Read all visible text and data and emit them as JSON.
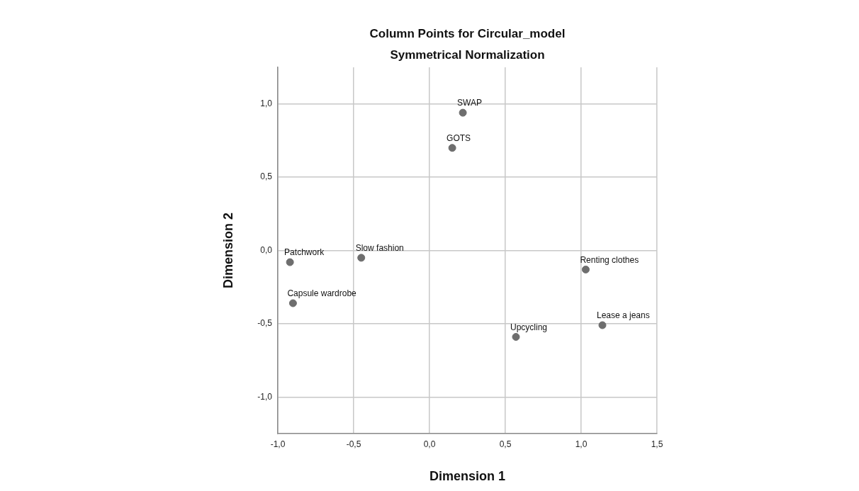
{
  "chart_data": {
    "type": "scatter",
    "title": "Column Points for Circular_model",
    "subtitle": "Symmetrical Normalization",
    "xlabel": "Dimension 1",
    "ylabel": "Dimension 2",
    "x": [
      0.22,
      0.15,
      -0.92,
      -0.45,
      -0.9,
      1.03,
      1.14,
      0.57
    ],
    "values": [
      0.94,
      0.7,
      -0.08,
      -0.05,
      -0.36,
      -0.13,
      -0.51,
      -0.59
    ],
    "value_labels": [
      "SWAP",
      "GOTS",
      "Patchwork",
      "Slow fashion",
      "Capsule wardrobe",
      "Renting clothes",
      "Lease a jeans",
      "Upcycling"
    ],
    "color": "#6e6e6e",
    "marker": "circle",
    "grid": true,
    "legend": false,
    "xlim": [
      -1.0,
      1.5
    ],
    "xticks": [
      {
        "value": -1.0,
        "label": "-1,0"
      },
      {
        "value": -0.5,
        "label": "-0,5"
      },
      {
        "value": 0.0,
        "label": "0,0"
      },
      {
        "value": 0.5,
        "label": "0,5"
      },
      {
        "value": 1.0,
        "label": "1,0"
      },
      {
        "value": 1.5,
        "label": "1,5"
      }
    ],
    "ylim": [
      -1.25,
      1.25
    ],
    "yticks": [
      {
        "value": -1.0,
        "label": "-1,0"
      },
      {
        "value": -0.5,
        "label": "-0,5"
      },
      {
        "value": 0.0,
        "label": "0,0"
      },
      {
        "value": 0.5,
        "label": "0,5"
      },
      {
        "value": 1.0,
        "label": "1,0"
      }
    ]
  }
}
